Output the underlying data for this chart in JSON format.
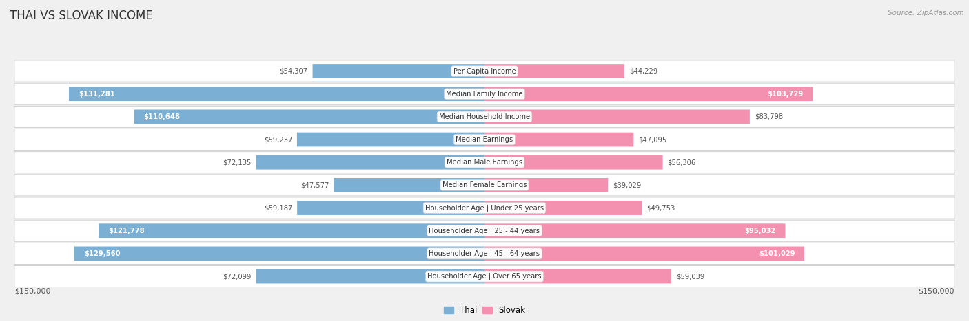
{
  "title": "THAI VS SLOVAK INCOME",
  "source": "Source: ZipAtlas.com",
  "categories": [
    "Per Capita Income",
    "Median Family Income",
    "Median Household Income",
    "Median Earnings",
    "Median Male Earnings",
    "Median Female Earnings",
    "Householder Age | Under 25 years",
    "Householder Age | 25 - 44 years",
    "Householder Age | 45 - 64 years",
    "Householder Age | Over 65 years"
  ],
  "thai_values": [
    54307,
    131281,
    110648,
    59237,
    72135,
    47577,
    59187,
    121778,
    129560,
    72099
  ],
  "slovak_values": [
    44229,
    103729,
    83798,
    47095,
    56306,
    39029,
    49753,
    95032,
    101029,
    59039
  ],
  "thai_color": "#7bafd4",
  "slovak_color": "#f490b0",
  "thai_label": "Thai",
  "slovak_label": "Slovak",
  "x_max": 150000,
  "bg_color": "#f0f0f0",
  "row_bg": "#ffffff",
  "row_edge": "#cccccc",
  "title_color": "#333333",
  "source_color": "#999999",
  "value_dark": "#555555",
  "value_light": "#ffffff",
  "xlabel_left": "$150,000",
  "xlabel_right": "$150,000",
  "inside_threshold": 0.58
}
